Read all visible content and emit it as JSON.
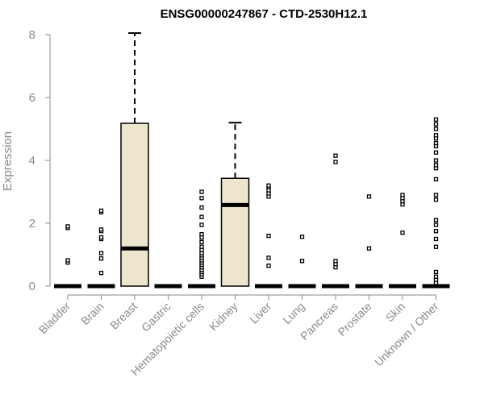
{
  "chart_data": {
    "type": "box",
    "title": "ENSG00000247867 - CTD-2530H12.1",
    "ylabel": "Expression",
    "xlabel": "",
    "ylim": [
      0,
      8
    ],
    "yticks": [
      0,
      2,
      4,
      6,
      8
    ],
    "grid": false,
    "legend": "none",
    "colors": {
      "box_fill": "#ede6cc",
      "box_stroke": "#000000",
      "median": "#000000",
      "axis": "#8a8a8a",
      "outlier": "#000000"
    },
    "categories": [
      "Bladder",
      "Brain",
      "Breast",
      "Gastric",
      "Hematopoietic cells",
      "Kidney",
      "Liver",
      "Lung",
      "Pancreas",
      "Prostate",
      "Skin",
      "Unknown / Other"
    ],
    "boxes": [
      {
        "category": "Bladder",
        "q1": 0,
        "median": 0,
        "q3": 0,
        "whisker_low": 0,
        "whisker_high": 0,
        "outliers": [
          0.75,
          0.82,
          1.85,
          1.9
        ]
      },
      {
        "category": "Brain",
        "q1": 0,
        "median": 0,
        "q3": 0,
        "whisker_low": 0,
        "whisker_high": 0,
        "outliers": [
          0.42,
          0.88,
          1.05,
          1.5,
          1.55,
          1.75,
          1.8,
          2.35,
          2.4
        ]
      },
      {
        "category": "Breast",
        "q1": 0,
        "median": 1.2,
        "q3": 5.18,
        "whisker_low": 0,
        "whisker_high": 8.05,
        "outliers": []
      },
      {
        "category": "Gastric",
        "q1": 0,
        "median": 0,
        "q3": 0,
        "whisker_low": 0,
        "whisker_high": 0,
        "outliers": []
      },
      {
        "category": "Hematopoietic cells",
        "q1": 0,
        "median": 0,
        "q3": 0,
        "whisker_low": 0,
        "whisker_high": 0,
        "outliers": [
          0.3,
          0.38,
          0.45,
          0.52,
          0.6,
          0.68,
          0.75,
          0.82,
          0.9,
          0.98,
          1.05,
          1.15,
          1.25,
          1.4,
          1.55,
          1.65,
          1.95,
          2.2,
          2.5,
          2.8,
          3.0
        ]
      },
      {
        "category": "Kidney",
        "q1": 0,
        "median": 2.58,
        "q3": 3.43,
        "whisker_low": 0,
        "whisker_high": 5.2,
        "outliers": []
      },
      {
        "category": "Liver",
        "q1": 0,
        "median": 0,
        "q3": 0,
        "whisker_low": 0,
        "whisker_high": 0,
        "outliers": [
          0.65,
          0.9,
          1.6,
          2.85,
          2.95,
          3.05,
          3.15,
          3.2
        ]
      },
      {
        "category": "Lung",
        "q1": 0,
        "median": 0,
        "q3": 0,
        "whisker_low": 0,
        "whisker_high": 0,
        "outliers": [
          0.8,
          1.57
        ]
      },
      {
        "category": "Pancreas",
        "q1": 0,
        "median": 0,
        "q3": 0,
        "whisker_low": 0,
        "whisker_high": 0,
        "outliers": [
          0.6,
          0.7,
          0.8,
          3.95,
          4.15
        ]
      },
      {
        "category": "Prostate",
        "q1": 0,
        "median": 0,
        "q3": 0,
        "whisker_low": 0,
        "whisker_high": 0,
        "outliers": [
          1.2,
          2.85
        ]
      },
      {
        "category": "Skin",
        "q1": 0,
        "median": 0,
        "q3": 0,
        "whisker_low": 0,
        "whisker_high": 0,
        "outliers": [
          1.7,
          2.6,
          2.7,
          2.8,
          2.9
        ]
      },
      {
        "category": "Unknown / Other",
        "q1": 0,
        "median": 0,
        "q3": 0,
        "whisker_low": 0,
        "whisker_high": 0,
        "outliers": [
          0.1,
          0.2,
          0.3,
          0.45,
          1.25,
          1.5,
          1.75,
          1.95,
          2.1,
          2.75,
          2.9,
          3.4,
          3.75,
          3.85,
          4.0,
          4.25,
          4.45,
          4.55,
          4.7,
          4.8,
          5.0,
          5.15,
          5.3
        ]
      }
    ]
  }
}
